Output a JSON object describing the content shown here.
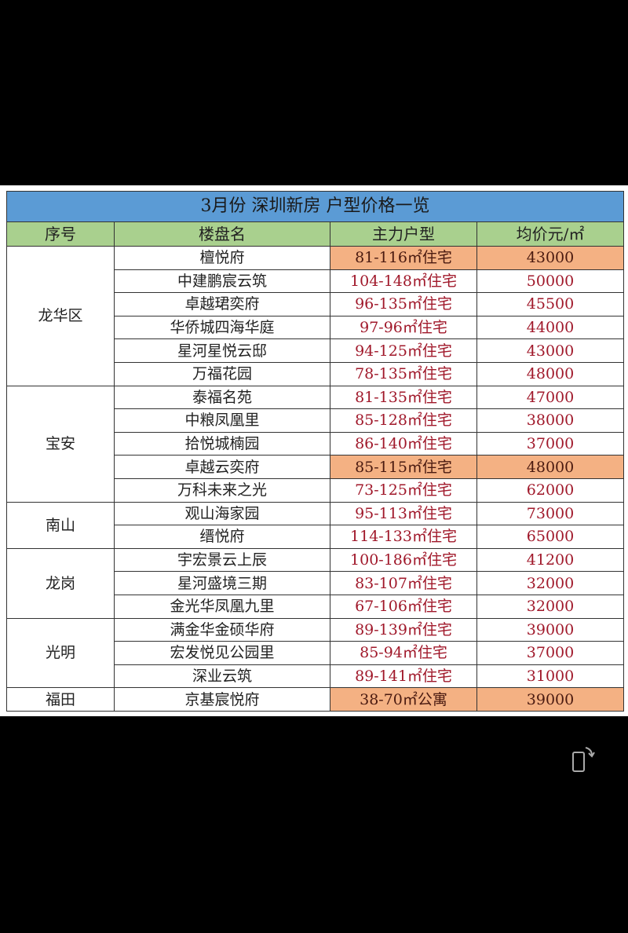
{
  "title": "3月份 深圳新房 户型价格一览",
  "headers": [
    "序号",
    "楼盘名",
    "主力户型",
    "均价元/㎡"
  ],
  "colors": {
    "title_bg": "#5b9bd5",
    "header_bg": "#a9d08e",
    "highlight_bg": "#f4b183",
    "value_text": "#a0182a"
  },
  "groups": [
    {
      "district": "龙华区",
      "rows": [
        {
          "name": "檀悦府",
          "type": "81-116㎡住宅",
          "price": "43000",
          "highlight": true
        },
        {
          "name": "中建鹏宸云筑",
          "type": "104-148㎡住宅",
          "price": "50000"
        },
        {
          "name": "卓越珺奕府",
          "type": "96-135㎡住宅",
          "price": "45500"
        },
        {
          "name": "华侨城四海华庭",
          "type": "97-96㎡住宅",
          "price": "44000"
        },
        {
          "name": "星河星悦云邸",
          "type": "94-125㎡住宅",
          "price": "43000"
        },
        {
          "name": "万福花园",
          "type": "78-135㎡住宅",
          "price": "48000"
        }
      ]
    },
    {
      "district": "宝安",
      "rows": [
        {
          "name": "泰福名苑",
          "type": "81-135㎡住宅",
          "price": "47000"
        },
        {
          "name": "中粮凤凰里",
          "type": "85-128㎡住宅",
          "price": "38000"
        },
        {
          "name": "拾悦城楠园",
          "type": "86-140㎡住宅",
          "price": "37000"
        },
        {
          "name": "卓越云奕府",
          "type": "85-115㎡住宅",
          "price": "48000",
          "highlight": true
        },
        {
          "name": "万科未来之光",
          "type": "73-125㎡住宅",
          "price": "62000"
        }
      ]
    },
    {
      "district": "南山",
      "rows": [
        {
          "name": "观山海家园",
          "type": "95-113㎡住宅",
          "price": "73000"
        },
        {
          "name": "缙悦府",
          "type": "114-133㎡住宅",
          "price": "65000"
        }
      ]
    },
    {
      "district": "龙岗",
      "rows": [
        {
          "name": "宇宏景云上辰",
          "type": "100-186㎡住宅",
          "price": "41200"
        },
        {
          "name": "星河盛境三期",
          "type": "83-107㎡住宅",
          "price": "32000"
        },
        {
          "name": "金光华凤凰九里",
          "type": "67-106㎡住宅",
          "price": "32000"
        }
      ]
    },
    {
      "district": "光明",
      "rows": [
        {
          "name": "满金华金硕华府",
          "type": "89-139㎡住宅",
          "price": "39000"
        },
        {
          "name": "宏发悦见公园里",
          "type": "85-94㎡住宅",
          "price": "37000"
        },
        {
          "name": "深业云筑",
          "type": "89-141㎡住宅",
          "price": "31000"
        }
      ]
    },
    {
      "district": "福田",
      "rows": [
        {
          "name": "京基宸悦府",
          "type": "38-70㎡公寓",
          "price": "39000",
          "highlight": true
        }
      ]
    }
  ],
  "overlay": {
    "icon": "rotate-screen-icon"
  }
}
